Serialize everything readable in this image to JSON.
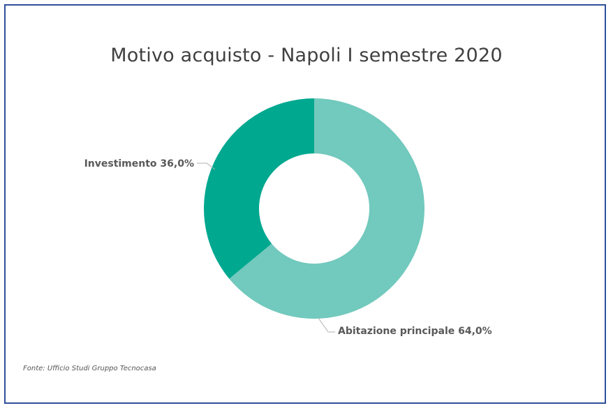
{
  "chart_data": {
    "type": "pie",
    "variant": "donut",
    "title": "Motivo acquisto - Napoli I semestre 2020",
    "slices": [
      {
        "label": "Abitazione principale",
        "value": 64.0,
        "display": "Abitazione principale 64,0%",
        "color": "#72c9bd"
      },
      {
        "label": "Investimento",
        "value": 36.0,
        "display": "Investimento 36,0%",
        "color": "#00a88f"
      }
    ],
    "legend": "none"
  },
  "source": "Fonte: Ufficio Studi Gruppo Tecnocasa"
}
